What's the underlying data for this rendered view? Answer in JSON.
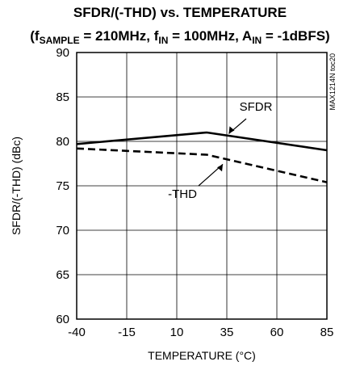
{
  "chart_data": {
    "type": "line",
    "title": "SFDR/(-THD) vs. TEMPERATURE",
    "subtitle": {
      "open": "(f",
      "fs_sub": "SAMPLE",
      "mid1": " = 210MHz, f",
      "fin_sub": "IN",
      "mid2": " = 100MHz, A",
      "ain_sub": "IN",
      "close": " = -1dBFS)"
    },
    "xlabel": "TEMPERATURE (°C)",
    "ylabel": "SFDR/(-THD) (dBc)",
    "xlim": [
      -40,
      85
    ],
    "ylim": [
      60,
      90
    ],
    "xticks": [
      -40,
      -15,
      10,
      35,
      60,
      85
    ],
    "yticks": [
      60,
      65,
      70,
      75,
      80,
      85,
      90
    ],
    "grid": true,
    "side_label": "MAX1214N toc20",
    "series": [
      {
        "name": "SFDR",
        "style": "solid",
        "x": [
          -40,
          25,
          85
        ],
        "y": [
          79.7,
          81.0,
          79.0
        ]
      },
      {
        "name": "-THD",
        "style": "dashed",
        "x": [
          -40,
          25,
          85
        ],
        "y": [
          79.2,
          78.5,
          75.4
        ]
      }
    ],
    "annotations": [
      {
        "text": "SFDR",
        "series": "SFDR"
      },
      {
        "text": "-THD",
        "series": "-THD"
      }
    ]
  }
}
